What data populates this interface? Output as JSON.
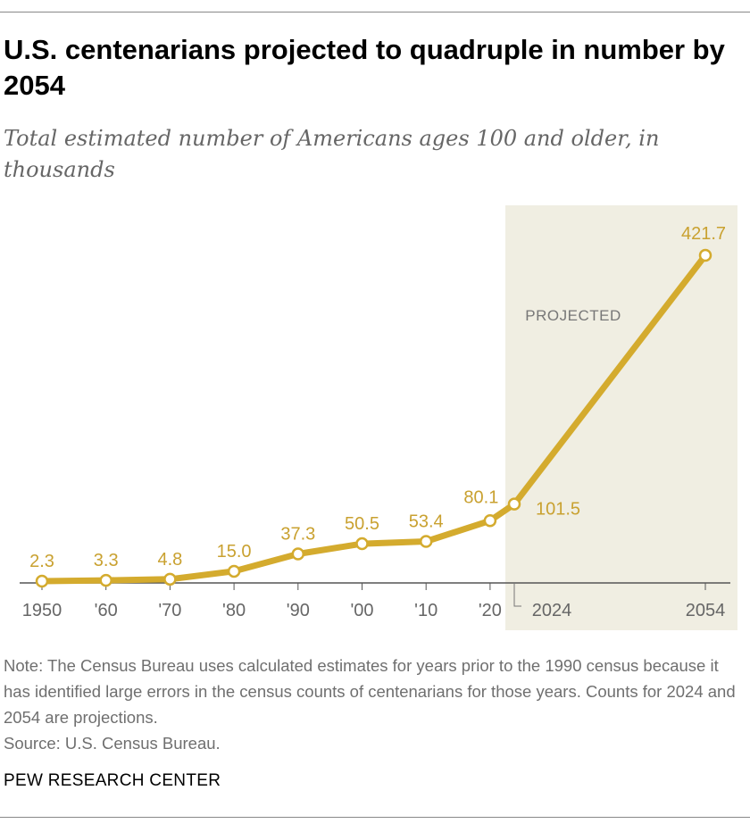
{
  "title": "U.S. centenarians projected to quadruple in number by 2054",
  "subtitle": "Total estimated number of Americans ages 100 and older, in thousands",
  "note": "Note: The Census Bureau uses calculated estimates for years prior to the 1990 census because it has identified large errors in the census counts of centenarians for those years. Counts for 2024 and 2054 are projections.",
  "source": "Source: U.S. Census Bureau.",
  "brand": "PEW RESEARCH CENTER",
  "colors": {
    "line": "#d4ab2e",
    "label": "#c9a130",
    "projected_band": "#f0eee2",
    "axis": "#555555",
    "tick_label": "#666666"
  },
  "chart_data": {
    "type": "line",
    "title": "U.S. centenarians projected to quadruple in number by 2054",
    "ylabel": "",
    "xlabel": "",
    "unit": "thousands",
    "points": [
      {
        "x": 1950,
        "y": 2.3,
        "tick": "1950",
        "label": "2.3"
      },
      {
        "x": 1960,
        "y": 3.3,
        "tick": "'60",
        "label": "3.3"
      },
      {
        "x": 1970,
        "y": 4.8,
        "tick": "'70",
        "label": "4.8"
      },
      {
        "x": 1980,
        "y": 15.0,
        "tick": "'80",
        "label": "15.0"
      },
      {
        "x": 1990,
        "y": 37.3,
        "tick": "'90",
        "label": "37.3"
      },
      {
        "x": 2000,
        "y": 50.5,
        "tick": "'00",
        "label": "50.5"
      },
      {
        "x": 2010,
        "y": 53.4,
        "tick": "'10",
        "label": "53.4"
      },
      {
        "x": 2020,
        "y": 80.1,
        "tick": "'20",
        "label": "80.1"
      },
      {
        "x": 2024,
        "y": 101.5,
        "tick": "2024",
        "label": "101.5"
      },
      {
        "x": 2054,
        "y": 421.7,
        "tick": "2054",
        "label": "421.7"
      }
    ],
    "ylim": [
      0,
      421.7
    ],
    "grid": false,
    "projected_region": {
      "label": "PROJECTED",
      "from": 2024,
      "to": 2054
    }
  }
}
